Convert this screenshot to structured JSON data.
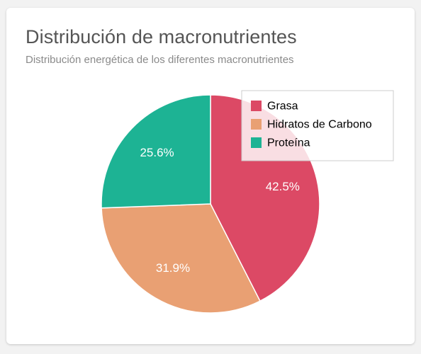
{
  "card": {
    "title": "Distribución de macronutrientes",
    "subtitle": "Distribución energética de los diferentes macronutrientes"
  },
  "chart_data": {
    "type": "pie",
    "title": "",
    "legend_position": "top-right",
    "start_angle_deg": 0,
    "direction": "clockwise",
    "slices": [
      {
        "label": "Grasa",
        "value": 42.5,
        "value_label": "42.5%",
        "color": "#dc4965"
      },
      {
        "label": "Hidratos de Carbono",
        "value": 31.9,
        "value_label": "31.9%",
        "color": "#e9a073"
      },
      {
        "label": "Proteína",
        "value": 25.6,
        "value_label": "25.6%",
        "color": "#1db394"
      }
    ]
  }
}
